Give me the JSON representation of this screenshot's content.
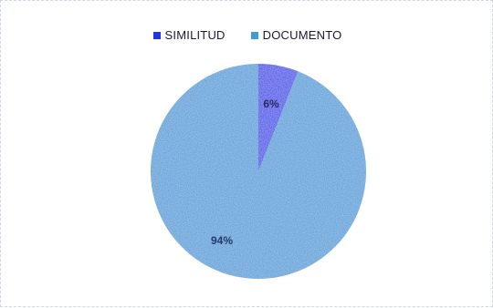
{
  "chart_data": {
    "type": "pie",
    "title": "",
    "legend_position": "top",
    "slices": [
      {
        "name": "SIMILITUD",
        "value": 6,
        "label": "6%",
        "color": "#1f35e8"
      },
      {
        "name": "DOCUMENTO",
        "value": 94,
        "label": "94%",
        "color": "#3f9ad8"
      }
    ]
  }
}
